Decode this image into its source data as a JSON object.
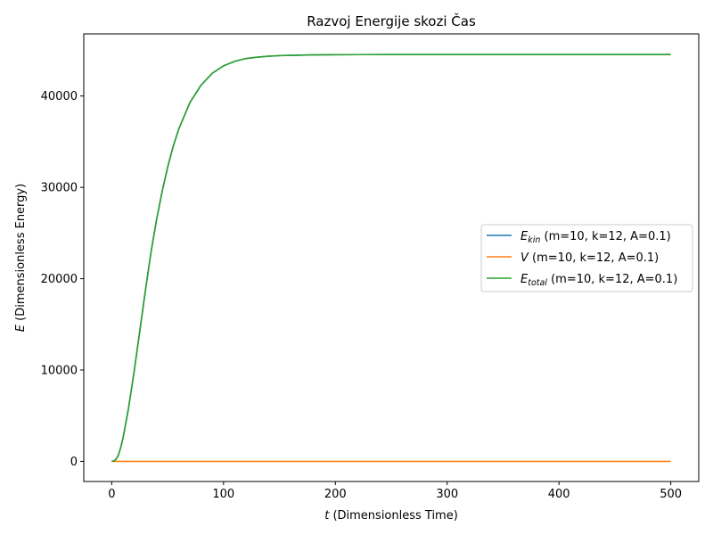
{
  "chart_data": {
    "type": "line",
    "title": "Razvoj Energije skozi Čas",
    "xlabel": {
      "var": "t",
      "text": " (Dimensionless Time)"
    },
    "ylabel": {
      "var": "E",
      "text": " (Dimensionless Energy)"
    },
    "xlim": [
      -25,
      525
    ],
    "ylim": [
      -2200,
      46800
    ],
    "xticks": [
      0,
      100,
      200,
      300,
      400,
      500
    ],
    "yticks": [
      0,
      10000,
      20000,
      30000,
      40000
    ],
    "grid": false,
    "legend_position": "center-right",
    "series": [
      {
        "name": "kin",
        "label_main": "E",
        "label_sub": "kin",
        "label_rest": " (m=10, k=12, A=0.1)",
        "color": "#1f77b4",
        "x": [
          0,
          2,
          4,
          6,
          8,
          10,
          15,
          20,
          25,
          30,
          35,
          40,
          45,
          50,
          55,
          60,
          70,
          80,
          90,
          100,
          110,
          120,
          130,
          140,
          150,
          160,
          170,
          180,
          200,
          220,
          250,
          300,
          350,
          400,
          450,
          500
        ],
        "y": [
          0,
          50,
          250,
          700,
          1500,
          2500,
          5800,
          9800,
          14200,
          18600,
          22800,
          26400,
          29500,
          32200,
          34500,
          36400,
          39300,
          41200,
          42500,
          43300,
          43800,
          44100,
          44250,
          44350,
          44420,
          44450,
          44480,
          44500,
          44520,
          44530,
          44535,
          44540,
          44540,
          44540,
          44540,
          44540
        ]
      },
      {
        "name": "V",
        "label_main": "V",
        "label_sub": "",
        "label_rest": " (m=10, k=12, A=0.1)",
        "color": "#ff7f0e",
        "x": [
          0,
          500
        ],
        "y": [
          0,
          0
        ]
      },
      {
        "name": "total",
        "label_main": "E",
        "label_sub": "total",
        "label_rest": " (m=10, k=12, A=0.1)",
        "color": "#2ca02c",
        "x": [
          0,
          2,
          4,
          6,
          8,
          10,
          15,
          20,
          25,
          30,
          35,
          40,
          45,
          50,
          55,
          60,
          70,
          80,
          90,
          100,
          110,
          120,
          130,
          140,
          150,
          160,
          170,
          180,
          200,
          220,
          250,
          300,
          350,
          400,
          450,
          500
        ],
        "y": [
          0,
          50,
          250,
          700,
          1500,
          2500,
          5800,
          9800,
          14200,
          18600,
          22800,
          26400,
          29500,
          32200,
          34500,
          36400,
          39300,
          41200,
          42500,
          43300,
          43800,
          44100,
          44250,
          44350,
          44420,
          44450,
          44480,
          44500,
          44520,
          44530,
          44535,
          44540,
          44540,
          44540,
          44540,
          44540
        ]
      }
    ]
  }
}
